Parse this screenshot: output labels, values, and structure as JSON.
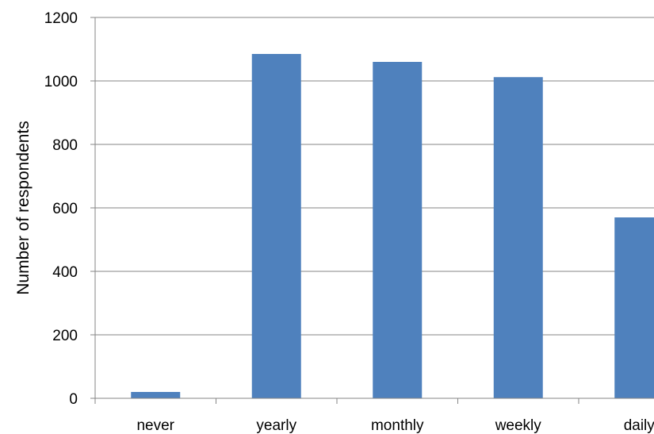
{
  "chart_data": {
    "type": "bar",
    "title": "",
    "xlabel": "",
    "ylabel": "Number of respondents",
    "categories": [
      "never",
      "yearly",
      "monthly",
      "weekly",
      "daily"
    ],
    "values": [
      20,
      1085,
      1060,
      1012,
      570
    ],
    "ylim": [
      0,
      1200
    ],
    "yticks": [
      0,
      200,
      400,
      600,
      800,
      1000,
      1200
    ],
    "grid": true,
    "legend": "none",
    "bar_color": "#4f81bd",
    "gridline_color": "#868686",
    "axis_color": "#868686"
  }
}
